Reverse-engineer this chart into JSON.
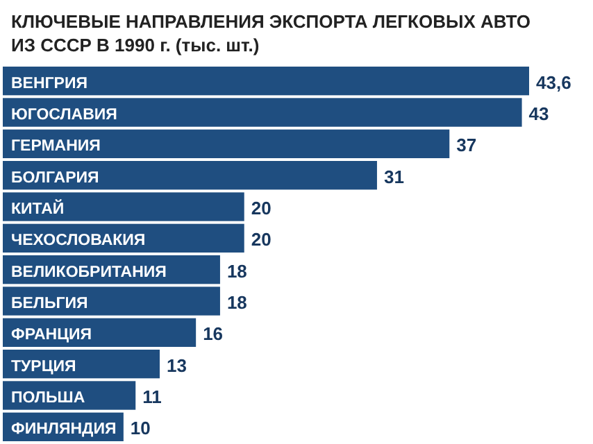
{
  "chart_data": {
    "type": "bar",
    "orientation": "horizontal",
    "title": "КЛЮЧЕВЫЕ НАПРАВЛЕНИЯ ЭКСПОРТА ЛЕГКОВЫХ АВТО ИЗ СССР В 1990 г. (тыс. шт.)",
    "categories": [
      "ВЕНГРИЯ",
      "ЮГОСЛАВИЯ",
      "ГЕРМАНИЯ",
      "БОЛГАРИЯ",
      "КИТАЙ",
      "ЧЕХОСЛОВАКИЯ",
      "ВЕЛИКОБРИТАНИЯ",
      "БЕЛЬГИЯ",
      "ФРАНЦИЯ",
      "ТУРЦИЯ",
      "ПОЛЬША",
      "ФИНЛЯНДИЯ"
    ],
    "values": [
      43.6,
      43,
      37,
      31,
      20,
      20,
      18,
      18,
      16,
      13,
      11,
      10
    ],
    "value_labels": [
      "43,6",
      "43",
      "37",
      "31",
      "20",
      "20",
      "18",
      "18",
      "16",
      "13",
      "11",
      "10"
    ],
    "color": "#1f4e80",
    "xlim": [
      0,
      43.6
    ]
  }
}
